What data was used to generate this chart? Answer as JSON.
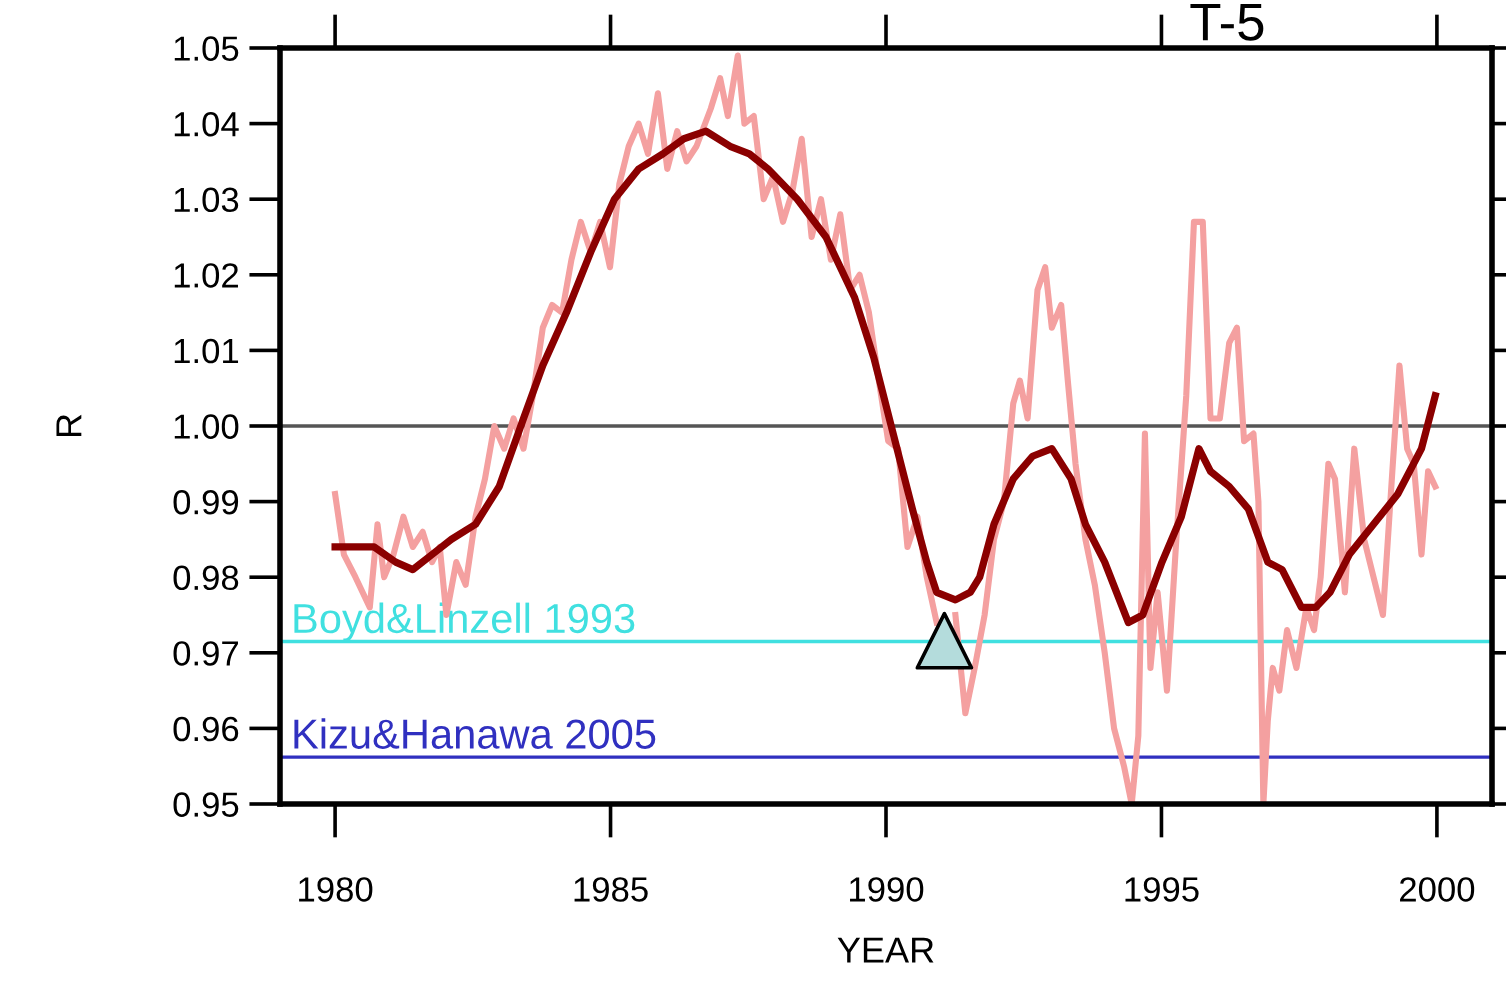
{
  "chart_data": {
    "type": "line",
    "title": "T-5",
    "xlabel": "YEAR",
    "ylabel": "R",
    "xlim": [
      1979,
      2001
    ],
    "xticks": [
      1980,
      1985,
      1990,
      1995,
      2000
    ],
    "ylim": [
      0.95,
      1.05
    ],
    "yticks": [
      {
        "value": 0.95,
        "label": "0.95"
      },
      {
        "value": 0.96,
        "label": "0.96"
      },
      {
        "value": 0.97,
        "label": "0.97"
      },
      {
        "value": 0.98,
        "label": "0.98"
      },
      {
        "value": 0.99,
        "label": "0.99"
      },
      {
        "value": 1.0,
        "label": "1.00"
      },
      {
        "value": 1.01,
        "label": "1.01"
      },
      {
        "value": 1.02,
        "label": "1.02"
      },
      {
        "value": 1.03,
        "label": "1.03"
      },
      {
        "value": 1.04,
        "label": "1.04"
      },
      {
        "value": 1.05,
        "label": "1.05"
      }
    ],
    "grid": false,
    "legend": false,
    "line_style": "solid",
    "marker": "none",
    "series": [
      {
        "color": "#f4a0a0",
        "x": [
          1980.0,
          1980.16,
          1980.37,
          1980.63,
          1980.77,
          1980.89,
          1981.06,
          1981.24,
          1981.41,
          1981.59,
          1981.76,
          1981.9,
          1982.02,
          1982.2,
          1982.37,
          1982.55,
          1982.72,
          1982.89,
          1983.07,
          1983.24,
          1983.42,
          1983.59,
          1983.77,
          1983.94,
          1984.12,
          1984.29,
          1984.46,
          1984.64,
          1984.81,
          1984.99,
          1985.16,
          1985.33,
          1985.51,
          1985.68,
          1985.86,
          1986.03,
          1986.21,
          1986.38,
          1986.56,
          1986.82,
          1986.99,
          1987.13,
          1987.31,
          1987.43,
          1987.6,
          1987.78,
          1987.95,
          1988.13,
          1988.3,
          1988.47,
          1988.65,
          1988.82,
          1989.0,
          1989.17,
          1989.35,
          1989.52,
          1989.69,
          1989.87,
          1990.04,
          1990.22,
          1990.39,
          1990.57,
          1990.74,
          1990.92,
          1991.09,
          1991.26,
          1991.44,
          1991.61,
          1991.79,
          1991.96,
          1992.14,
          1992.31,
          1992.43,
          1992.57,
          1992.75,
          1992.89,
          1993.01,
          1993.18,
          1993.3,
          1993.44,
          1993.62,
          1993.79,
          1993.97,
          1994.14,
          1994.32,
          1994.46,
          1994.58,
          1994.7,
          1994.8,
          1994.93,
          1995.1,
          1995.27,
          1995.45,
          1995.59,
          1995.75,
          1995.89,
          1996.06,
          1996.23,
          1996.37,
          1996.5,
          1996.67,
          1996.76,
          1996.85,
          1996.93,
          1997.02,
          1997.14,
          1997.28,
          1997.45,
          1997.63,
          1997.77,
          1997.89,
          1998.03,
          1998.15,
          1998.33,
          1998.5,
          1998.68,
          1998.85,
          1999.02,
          1999.2,
          1999.32,
          1999.46,
          1999.58,
          1999.72,
          1999.84,
          1999.97
        ],
        "values": [
          0.991,
          0.983,
          0.98,
          0.976,
          0.987,
          0.98,
          0.983,
          0.988,
          0.984,
          0.986,
          0.982,
          0.984,
          0.975,
          0.982,
          0.979,
          0.988,
          0.993,
          1.0,
          0.997,
          1.001,
          0.997,
          1.004,
          1.013,
          1.016,
          1.015,
          1.022,
          1.027,
          1.023,
          1.027,
          1.021,
          1.032,
          1.037,
          1.04,
          1.036,
          1.044,
          1.034,
          1.039,
          1.035,
          1.037,
          1.042,
          1.046,
          1.041,
          1.049,
          1.04,
          1.041,
          1.03,
          1.033,
          1.027,
          1.031,
          1.038,
          1.025,
          1.03,
          1.022,
          1.028,
          1.018,
          1.02,
          1.015,
          1.006,
          0.998,
          0.997,
          0.984,
          0.988,
          0.98,
          0.974,
          null,
          0.975,
          0.962,
          0.968,
          0.975,
          0.985,
          0.99,
          1.003,
          1.006,
          1.001,
          1.018,
          1.021,
          1.013,
          1.016,
          1.006,
          0.995,
          0.985,
          0.979,
          0.97,
          0.96,
          0.955,
          0.95,
          0.959,
          0.999,
          0.968,
          0.978,
          0.965,
          0.985,
          1.004,
          1.027,
          1.027,
          1.001,
          1.001,
          1.011,
          1.013,
          0.998,
          0.999,
          0.99,
          0.95,
          0.961,
          0.968,
          0.965,
          0.973,
          0.968,
          0.976,
          0.973,
          0.98,
          0.995,
          0.993,
          0.978,
          0.997,
          0.985,
          0.98,
          0.975,
          0.995,
          1.008,
          0.997,
          0.995,
          0.983,
          0.994,
          0.992
        ]
      },
      {
        "color": "#8b0000",
        "x": [
          1980.0,
          1980.37,
          1980.71,
          1981.1,
          1981.41,
          1981.76,
          1982.11,
          1982.55,
          1982.98,
          1983.42,
          1983.77,
          1984.2,
          1984.64,
          1985.07,
          1985.51,
          1985.95,
          1986.33,
          1986.73,
          1987.17,
          1987.52,
          1987.86,
          1988.39,
          1988.91,
          1989.43,
          1989.78,
          1990.13,
          1990.48,
          1990.74,
          1990.92,
          1991.26,
          1991.53,
          1991.7,
          1991.96,
          1992.31,
          1992.66,
          1993.01,
          1993.36,
          1993.62,
          1993.97,
          1994.4,
          1994.66,
          1995.01,
          1995.36,
          1995.68,
          1995.89,
          1996.23,
          1996.58,
          1996.93,
          1997.19,
          1997.54,
          1997.8,
          1998.06,
          1998.41,
          1998.85,
          1999.29,
          1999.72,
          1999.97
        ],
        "values": [
          0.984,
          0.984,
          0.984,
          0.982,
          0.981,
          0.983,
          0.985,
          0.987,
          0.992,
          1.001,
          1.008,
          1.015,
          1.023,
          1.03,
          1.034,
          1.036,
          1.038,
          1.039,
          1.037,
          1.036,
          1.034,
          1.03,
          1.025,
          1.017,
          1.009,
          0.999,
          0.989,
          0.982,
          0.978,
          0.977,
          0.978,
          0.98,
          0.987,
          0.993,
          0.996,
          0.997,
          0.993,
          0.987,
          0.982,
          0.974,
          0.975,
          0.982,
          0.988,
          0.997,
          0.994,
          0.992,
          0.989,
          0.982,
          0.981,
          0.976,
          0.976,
          0.978,
          0.983,
          0.987,
          0.991,
          0.997,
          1.004
        ]
      },
      {
        "type": "scatter",
        "color": "#b4dcdc",
        "marker": "triangle",
        "x": [
          1991.06
        ],
        "values": [
          0.9716
        ]
      }
    ],
    "ref_lines": [
      {
        "axis": "y",
        "value": 1.0,
        "color": "#555555"
      },
      {
        "axis": "y",
        "value": 0.9715,
        "label": "Boyd&Linzell 1993",
        "color": "#40e0e0"
      },
      {
        "axis": "y",
        "value": 0.9562,
        "label": "Kizu&Hanawa 2005",
        "color": "#3030c0"
      }
    ]
  }
}
